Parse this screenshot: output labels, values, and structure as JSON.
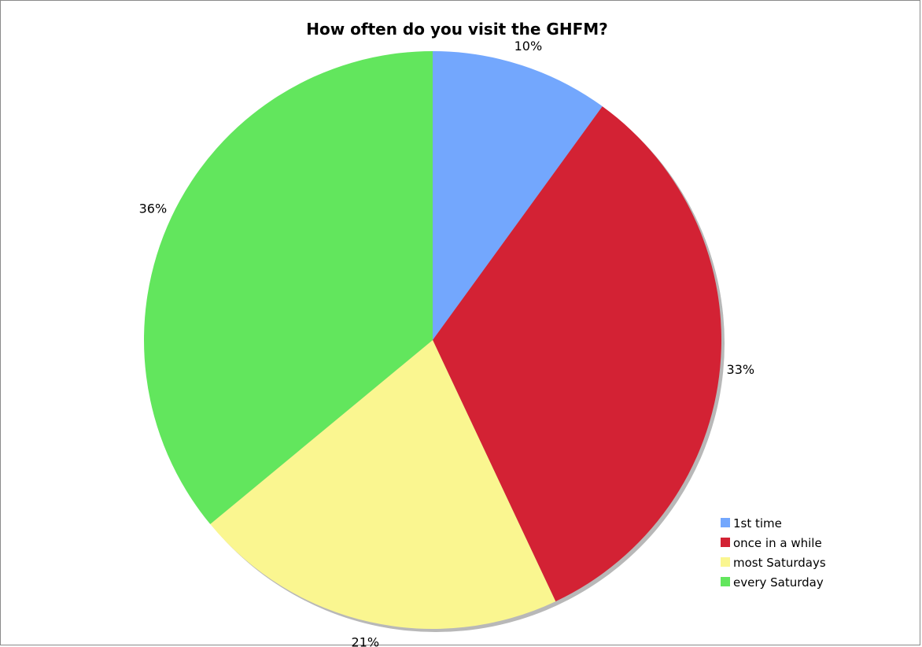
{
  "chart_data": {
    "type": "pie",
    "title": "How often do you visit the GHFM?",
    "categories": [
      "1st time",
      "once in a while",
      "most Saturdays",
      "every Saturday"
    ],
    "values": [
      10,
      33,
      21,
      36
    ],
    "labels": [
      "10%",
      "33%",
      "21%",
      "36%"
    ],
    "colors": [
      "#73a7fd",
      "#d32234",
      "#faf690",
      "#62e65d"
    ],
    "legend_placement": "bottom-right",
    "start_angle_deg": 0,
    "direction": "clockwise"
  }
}
